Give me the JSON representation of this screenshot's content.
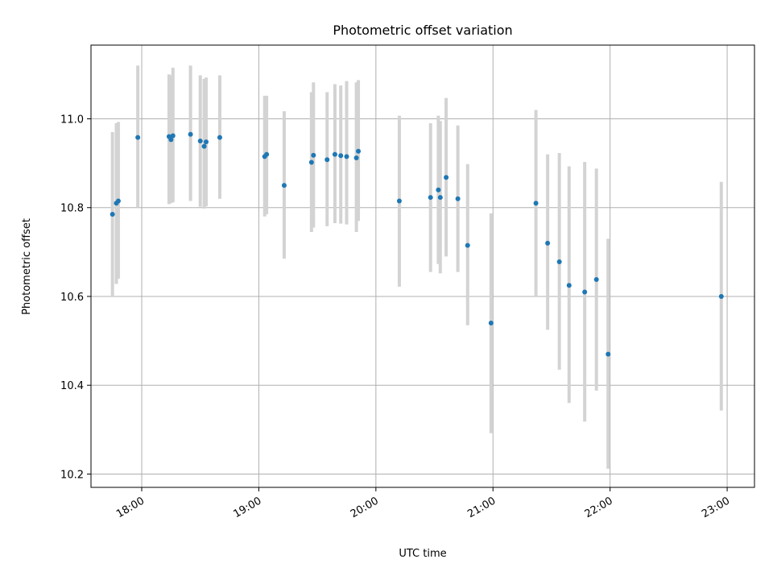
{
  "chart_data": {
    "type": "scatter",
    "title": "Photometric offset variation",
    "xlabel": "UTC time",
    "ylabel": "Photometric offset",
    "x_is_time": true,
    "xlim": [
      "17:34",
      "23:14"
    ],
    "ylim": [
      10.17,
      11.166
    ],
    "x_ticks": [
      "18:00",
      "19:00",
      "20:00",
      "21:00",
      "22:00",
      "23:00"
    ],
    "y_ticks": [
      10.2,
      10.4,
      10.6,
      10.8,
      11.0
    ],
    "grid": true,
    "marker_color": "#1f77b4",
    "errorbar_color": "#d3d3d3",
    "points": [
      {
        "t": "17:45",
        "y": 10.785,
        "lo": 10.6,
        "hi": 10.97
      },
      {
        "t": "17:47",
        "y": 10.81,
        "lo": 10.628,
        "hi": 10.99
      },
      {
        "t": "17:48",
        "y": 10.815,
        "lo": 10.64,
        "hi": 10.993
      },
      {
        "t": "17:58",
        "y": 10.958,
        "lo": 10.8,
        "hi": 11.12
      },
      {
        "t": "18:14",
        "y": 10.96,
        "lo": 10.808,
        "hi": 11.1
      },
      {
        "t": "18:15",
        "y": 10.953,
        "lo": 10.81,
        "hi": 11.098
      },
      {
        "t": "18:16",
        "y": 10.962,
        "lo": 10.812,
        "hi": 11.115
      },
      {
        "t": "18:25",
        "y": 10.965,
        "lo": 10.815,
        "hi": 11.12
      },
      {
        "t": "18:30",
        "y": 10.95,
        "lo": 10.802,
        "hi": 11.098
      },
      {
        "t": "18:32",
        "y": 10.938,
        "lo": 10.798,
        "hi": 11.09
      },
      {
        "t": "18:33",
        "y": 10.948,
        "lo": 10.803,
        "hi": 11.093
      },
      {
        "t": "18:40",
        "y": 10.958,
        "lo": 10.82,
        "hi": 11.098
      },
      {
        "t": "19:03",
        "y": 10.915,
        "lo": 10.78,
        "hi": 11.052
      },
      {
        "t": "19:04",
        "y": 10.92,
        "lo": 10.785,
        "hi": 11.052
      },
      {
        "t": "19:13",
        "y": 10.85,
        "lo": 10.685,
        "hi": 11.017
      },
      {
        "t": "19:27",
        "y": 10.902,
        "lo": 10.745,
        "hi": 11.06
      },
      {
        "t": "19:28",
        "y": 10.918,
        "lo": 10.755,
        "hi": 11.082
      },
      {
        "t": "19:35",
        "y": 10.908,
        "lo": 10.758,
        "hi": 11.06
      },
      {
        "t": "19:39",
        "y": 10.92,
        "lo": 10.765,
        "hi": 11.078
      },
      {
        "t": "19:42",
        "y": 10.917,
        "lo": 10.764,
        "hi": 11.075
      },
      {
        "t": "19:45",
        "y": 10.915,
        "lo": 10.762,
        "hi": 11.085
      },
      {
        "t": "19:50",
        "y": 10.912,
        "lo": 10.745,
        "hi": 11.082
      },
      {
        "t": "19:51",
        "y": 10.927,
        "lo": 10.77,
        "hi": 11.087
      },
      {
        "t": "20:12",
        "y": 10.815,
        "lo": 10.622,
        "hi": 11.007
      },
      {
        "t": "20:28",
        "y": 10.823,
        "lo": 10.655,
        "hi": 10.99
      },
      {
        "t": "20:32",
        "y": 10.84,
        "lo": 10.673,
        "hi": 11.007
      },
      {
        "t": "20:33",
        "y": 10.823,
        "lo": 10.652,
        "hi": 10.995
      },
      {
        "t": "20:36",
        "y": 10.868,
        "lo": 10.69,
        "hi": 11.047
      },
      {
        "t": "20:42",
        "y": 10.82,
        "lo": 10.655,
        "hi": 10.985
      },
      {
        "t": "20:47",
        "y": 10.715,
        "lo": 10.535,
        "hi": 10.898
      },
      {
        "t": "20:59",
        "y": 10.54,
        "lo": 10.292,
        "hi": 10.787
      },
      {
        "t": "21:22",
        "y": 10.81,
        "lo": 10.6,
        "hi": 11.02
      },
      {
        "t": "21:28",
        "y": 10.72,
        "lo": 10.525,
        "hi": 10.92
      },
      {
        "t": "21:34",
        "y": 10.678,
        "lo": 10.435,
        "hi": 10.923
      },
      {
        "t": "21:39",
        "y": 10.625,
        "lo": 10.36,
        "hi": 10.893
      },
      {
        "t": "21:47",
        "y": 10.61,
        "lo": 10.318,
        "hi": 10.903
      },
      {
        "t": "21:53",
        "y": 10.638,
        "lo": 10.388,
        "hi": 10.888
      },
      {
        "t": "21:59",
        "y": 10.47,
        "lo": 10.212,
        "hi": 10.73
      },
      {
        "t": "22:57",
        "y": 10.6,
        "lo": 10.343,
        "hi": 10.858
      }
    ]
  }
}
